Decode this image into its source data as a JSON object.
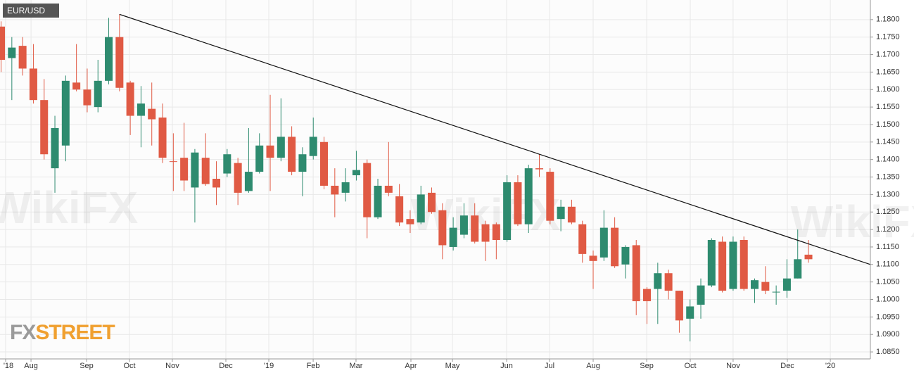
{
  "chart_data": {
    "type": "candlestick",
    "title": "EUR/USD",
    "logo": [
      "FX",
      "STREET"
    ],
    "watermark": "WikiFX",
    "x": [
      0,
      1,
      2,
      3,
      4,
      5,
      6,
      7,
      8,
      9,
      10,
      11,
      12,
      13,
      14,
      15,
      16,
      17,
      18,
      19,
      20,
      21,
      22,
      23,
      24,
      25,
      26,
      27,
      28,
      29,
      30,
      31,
      32,
      33,
      34,
      35,
      36,
      37,
      38,
      39,
      40,
      41,
      42,
      43,
      44,
      45,
      46,
      47,
      48,
      49,
      50,
      51,
      52,
      53,
      54,
      55,
      56,
      57,
      58,
      59,
      60,
      61,
      62,
      63,
      64,
      65,
      66,
      67,
      68,
      69,
      70,
      71,
      72,
      73,
      74,
      75
    ],
    "open": [
      1.178,
      1.169,
      1.1725,
      1.166,
      1.157,
      1.1375,
      1.144,
      1.162,
      1.16,
      1.155,
      1.1625,
      1.175,
      1.162,
      1.1525,
      1.1545,
      1.152,
      1.1395,
      1.1405,
      1.132,
      1.1405,
      1.1345,
      1.136,
      1.139,
      1.131,
      1.1365,
      1.144,
      1.1405,
      1.1465,
      1.1365,
      1.141,
      1.145,
      1.1325,
      1.1305,
      1.1355,
      1.139,
      1.1235,
      1.1325,
      1.1295,
      1.123,
      1.122,
      1.1305,
      1.1255,
      1.115,
      1.1185,
      1.124,
      1.1215,
      1.1215,
      1.117,
      1.1335,
      1.1215,
      1.1375,
      1.1365,
      1.123,
      1.1265,
      1.1215,
      1.1125,
      1.112,
      1.1205,
      1.11,
      1.1155,
      1.103,
      1.103,
      1.1075,
      1.1025,
      1.0945,
      1.0985,
      1.104,
      1.1165,
      1.103,
      1.117,
      1.103,
      1.105,
      1.102,
      1.1025,
      1.106,
      1.1128
    ],
    "high": [
      1.1795,
      1.175,
      1.175,
      1.173,
      1.163,
      1.1525,
      1.164,
      1.173,
      1.166,
      1.1685,
      1.1805,
      1.1815,
      1.1625,
      1.161,
      1.162,
      1.156,
      1.1475,
      1.1505,
      1.143,
      1.1475,
      1.1395,
      1.143,
      1.1405,
      1.149,
      1.1475,
      1.1585,
      1.1575,
      1.1495,
      1.1435,
      1.152,
      1.1465,
      1.1375,
      1.1375,
      1.1425,
      1.14,
      1.1345,
      1.145,
      1.133,
      1.1255,
      1.1325,
      1.132,
      1.1275,
      1.1235,
      1.1275,
      1.1275,
      1.1225,
      1.122,
      1.1355,
      1.1355,
      1.1385,
      1.1415,
      1.1375,
      1.1285,
      1.1285,
      1.1225,
      1.114,
      1.1255,
      1.1235,
      1.1155,
      1.117,
      1.1035,
      1.1105,
      1.1085,
      1.1025,
      1.1,
      1.106,
      1.1175,
      1.118,
      1.118,
      1.118,
      1.106,
      1.1095,
      1.104,
      1.1115,
      1.12,
      1.117
    ],
    "low": [
      1.165,
      1.157,
      1.164,
      1.156,
      1.14,
      1.1305,
      1.1395,
      1.1595,
      1.1535,
      1.1535,
      1.1615,
      1.1595,
      1.147,
      1.1435,
      1.144,
      1.139,
      1.131,
      1.131,
      1.122,
      1.1325,
      1.127,
      1.135,
      1.127,
      1.1305,
      1.136,
      1.131,
      1.1395,
      1.1355,
      1.1295,
      1.14,
      1.1315,
      1.1235,
      1.128,
      1.134,
      1.1175,
      1.123,
      1.1295,
      1.121,
      1.119,
      1.1215,
      1.1245,
      1.1115,
      1.114,
      1.1175,
      1.116,
      1.111,
      1.1115,
      1.1165,
      1.121,
      1.119,
      1.135,
      1.1215,
      1.1195,
      1.1215,
      1.1105,
      1.103,
      1.111,
      1.109,
      1.106,
      1.0955,
      1.093,
      1.093,
      1.1,
      1.0905,
      1.088,
      1.0945,
      1.1035,
      1.102,
      1.1025,
      1.1025,
      1.099,
      1.1015,
      1.0985,
      1.1005,
      1.106,
      1.1105
    ],
    "close": [
      1.1685,
      1.172,
      1.166,
      1.157,
      1.1415,
      1.149,
      1.1625,
      1.16,
      1.1555,
      1.1625,
      1.175,
      1.1605,
      1.1525,
      1.156,
      1.1515,
      1.1405,
      1.1393,
      1.134,
      1.142,
      1.133,
      1.132,
      1.1415,
      1.1305,
      1.1365,
      1.144,
      1.1405,
      1.1465,
      1.1365,
      1.1415,
      1.1465,
      1.1325,
      1.13,
      1.1335,
      1.137,
      1.1235,
      1.1325,
      1.1305,
      1.122,
      1.1215,
      1.13,
      1.125,
      1.1155,
      1.1205,
      1.124,
      1.1165,
      1.1165,
      1.117,
      1.1335,
      1.1215,
      1.1375,
      1.1372,
      1.1225,
      1.1265,
      1.122,
      1.113,
      1.111,
      1.1205,
      1.1095,
      1.115,
      1.0995,
      1.0995,
      1.1075,
      1.1025,
      1.094,
      1.098,
      1.104,
      1.117,
      1.1025,
      1.1165,
      1.103,
      1.1055,
      1.1025,
      1.1022,
      1.106,
      1.1115,
      1.1115
    ],
    "up_color": "#2e8b6f",
    "down_color": "#e05a44",
    "trendline": {
      "x": [
        11,
        80.75
      ],
      "y": [
        1.1815,
        1.11
      ],
      "color": "#111111"
    },
    "xlim": [
      -0.1,
      80.75
    ],
    "xticks": [
      {
        "value": 0.42,
        "label": "'18"
      },
      {
        "value": 2.78,
        "label": "Aug"
      },
      {
        "value": 7.94,
        "label": "Sep"
      },
      {
        "value": 11.93,
        "label": "Oct"
      },
      {
        "value": 15.91,
        "label": "Nov"
      },
      {
        "value": 20.88,
        "label": "Dec"
      },
      {
        "value": 24.87,
        "label": "'19"
      },
      {
        "value": 28.99,
        "label": "Feb"
      },
      {
        "value": 32.97,
        "label": "Mar"
      },
      {
        "value": 38.07,
        "label": "Apr"
      },
      {
        "value": 41.93,
        "label": "May"
      },
      {
        "value": 46.96,
        "label": "Jun"
      },
      {
        "value": 50.95,
        "label": "Jul"
      },
      {
        "value": 55.0,
        "label": "Aug"
      },
      {
        "value": 59.97,
        "label": "Sep"
      },
      {
        "value": 64.02,
        "label": "Oct"
      },
      {
        "value": 68.0,
        "label": "Nov"
      },
      {
        "value": 73.04,
        "label": "Dec"
      },
      {
        "value": 77.03,
        "label": "'20"
      }
    ],
    "ylim": [
      1.083,
      1.1856
    ],
    "yticks": [
      {
        "value": 1.18,
        "label": "1.1800"
      },
      {
        "value": 1.175,
        "label": "1.1750"
      },
      {
        "value": 1.17,
        "label": "1.1700"
      },
      {
        "value": 1.165,
        "label": "1.1650"
      },
      {
        "value": 1.16,
        "label": "1.1600"
      },
      {
        "value": 1.155,
        "label": "1.1550"
      },
      {
        "value": 1.15,
        "label": "1.1500"
      },
      {
        "value": 1.145,
        "label": "1.1450"
      },
      {
        "value": 1.14,
        "label": "1.1400"
      },
      {
        "value": 1.135,
        "label": "1.1350"
      },
      {
        "value": 1.13,
        "label": "1.1300"
      },
      {
        "value": 1.125,
        "label": "1.1250"
      },
      {
        "value": 1.12,
        "label": "1.1200"
      },
      {
        "value": 1.115,
        "label": "1.1150"
      },
      {
        "value": 1.11,
        "label": "1.1100"
      },
      {
        "value": 1.105,
        "label": "1.1050"
      },
      {
        "value": 1.1,
        "label": "1.1000"
      },
      {
        "value": 1.095,
        "label": "1.0950"
      },
      {
        "value": 1.09,
        "label": "1.0900"
      },
      {
        "value": 1.085,
        "label": "1.0850"
      }
    ],
    "grid": true
  }
}
